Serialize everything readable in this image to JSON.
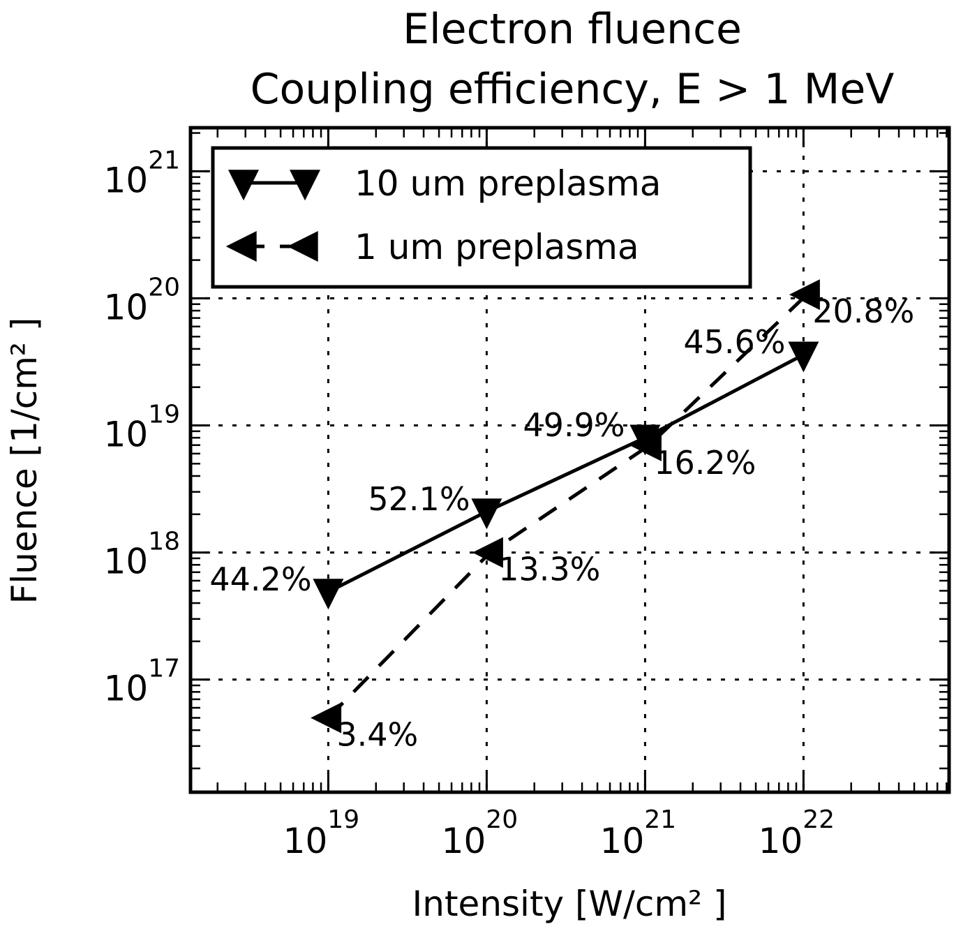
{
  "chart_data": {
    "type": "line",
    "title": [
      "Electron fluence",
      "Coupling efficiency, E > 1 MeV"
    ],
    "xlabel": "Intensity [W/cm² ]",
    "ylabel": "Fluence [1/cm² ]",
    "xscale": "log",
    "yscale": "log",
    "xlim": [
      1.35e+18,
      8.3e+22
    ],
    "ylim": [
      1.3e+16,
      2.2e+21
    ],
    "grid": true,
    "grid_style": "dotted",
    "legend_position": "upper left",
    "x_ticks": [
      {
        "value": 1e+19,
        "base": "10",
        "exp": "19"
      },
      {
        "value": 1e+20,
        "base": "10",
        "exp": "20"
      },
      {
        "value": 1e+21,
        "base": "10",
        "exp": "21"
      },
      {
        "value": 1e+22,
        "base": "10",
        "exp": "22"
      }
    ],
    "y_ticks": [
      {
        "value": 1e+17,
        "base": "10",
        "exp": "17"
      },
      {
        "value": 1e+18,
        "base": "10",
        "exp": "18"
      },
      {
        "value": 1e+19,
        "base": "10",
        "exp": "19"
      },
      {
        "value": 1e+20,
        "base": "10",
        "exp": "20"
      },
      {
        "value": 1e+21,
        "base": "10",
        "exp": "21"
      }
    ],
    "series": [
      {
        "name": "10 um preplasma",
        "linestyle": "solid",
        "marker": "triangle-down",
        "color": "#000000",
        "x": [
          1e+19,
          1e+20,
          1e+21,
          1e+22
        ],
        "y": [
          4.9e+17,
          2.1e+18,
          8e+18,
          3.6e+19
        ],
        "annotations": [
          {
            "text": "44.2%",
            "dx": -170,
            "dy": -2
          },
          {
            "text": "52.1%",
            "dx": -170,
            "dy": -2
          },
          {
            "text": "49.9%",
            "dx": -175,
            "dy": -2
          },
          {
            "text": "45.6%",
            "dx": -172,
            "dy": -2
          }
        ]
      },
      {
        "name": "1 um preplasma",
        "linestyle": "dashed",
        "marker": "triangle-left",
        "color": "#000000",
        "x": [
          1e+19,
          1.05e+20,
          1.05e+21,
          1.05e+22
        ],
        "y": [
          5e+16,
          1e+18,
          6.9e+18,
          1.07e+20
        ],
        "annotations": [
          {
            "text": "3.4%",
            "dx": 12,
            "dy": 40
          },
          {
            "text": "13.3%",
            "dx": 12,
            "dy": 40
          },
          {
            "text": "16.2%",
            "dx": 8,
            "dy": 40
          },
          {
            "text": "20.8%",
            "dx": 8,
            "dy": 40
          }
        ]
      }
    ]
  }
}
